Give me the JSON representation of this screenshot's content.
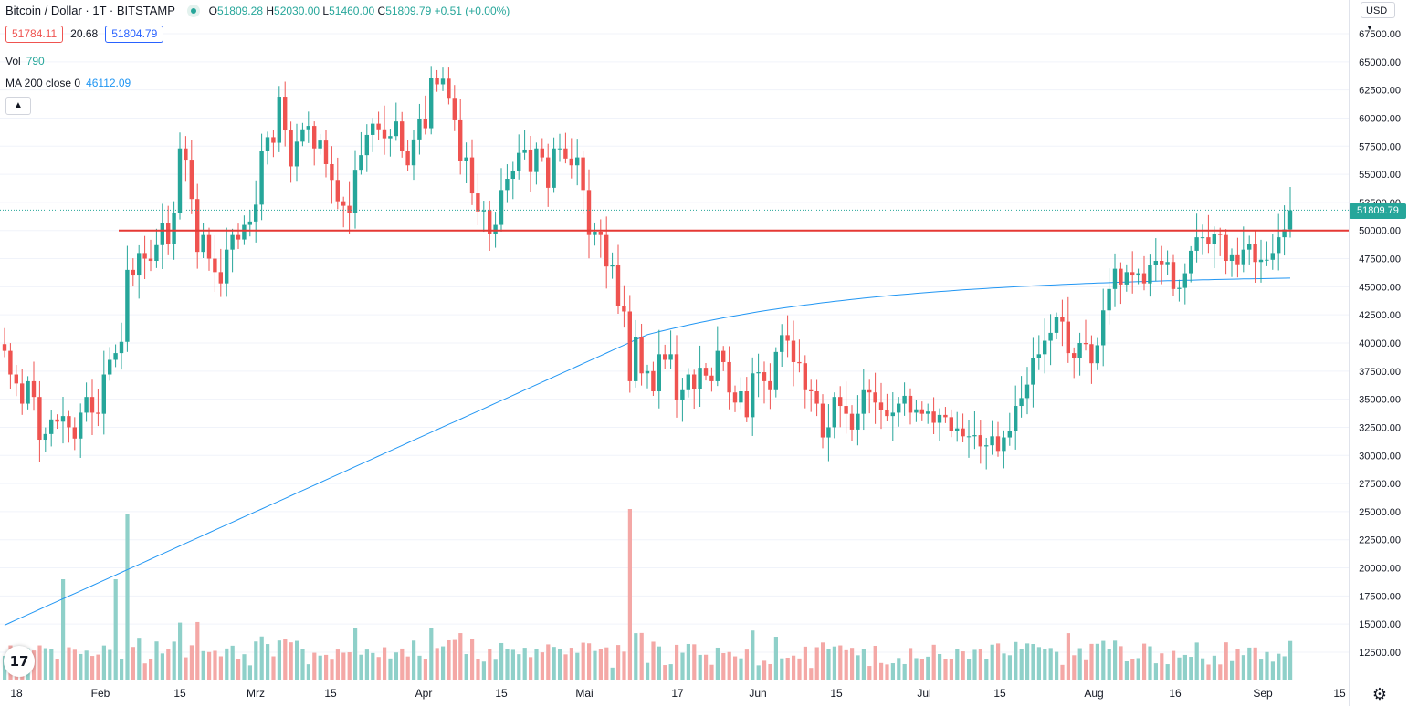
{
  "legend": {
    "title": "Bitcoin / Dollar · 1T · BITSTAMP",
    "ohlc": [
      {
        "k": "O",
        "v": "51809.28"
      },
      {
        "k": "H",
        "v": "52030.00"
      },
      {
        "k": "L",
        "v": "51460.00"
      },
      {
        "k": "C",
        "v": "51809.79 +0.51 (+0.00%)"
      }
    ],
    "bid": "51784.11",
    "spread": "20.68",
    "ask": "51804.79",
    "vol_label": "Vol",
    "vol_value": "790",
    "ma_label": "MA 200 close 0",
    "ma_value": "46112.09",
    "collapse_icon": "chevron-up-icon"
  },
  "currency_label": "USD",
  "last_price_label": "51809.79",
  "colors": {
    "up": "#26a69a",
    "down": "#ef5350",
    "up_vol": "#8fd0c9",
    "down_vol": "#f4a8a6",
    "ma": "#2196f3",
    "hline": "#e53935",
    "grid": "#f0f3fa",
    "axis_text": "#131722"
  },
  "chart_data": {
    "type": "candlestick",
    "title": "",
    "price_axis": {
      "ticks": [
        12500,
        15000,
        17500,
        20000,
        22500,
        25000,
        27500,
        30000,
        32500,
        35000,
        37500,
        40000,
        42500,
        45000,
        47500,
        50000,
        52500,
        55000,
        57500,
        60000,
        62500,
        65000,
        67500
      ],
      "tick_format": "decimal2"
    },
    "time_axis": {
      "labels": [
        "18",
        "Feb",
        "15",
        "Mrz",
        "15",
        "Apr",
        "15",
        "Mai",
        "17",
        "Jun",
        "15",
        "Jul",
        "15",
        "Aug",
        "16",
        "Sep",
        "15"
      ]
    },
    "horizontal_line": 50000,
    "last_price": 51809.79,
    "closes": [
      39300,
      37200,
      36400,
      34600,
      36600,
      35200,
      31400,
      31900,
      33200,
      33000,
      33500,
      32500,
      31500,
      33800,
      35200,
      33800,
      33700,
      37200,
      38500,
      39100,
      40100,
      46500,
      46000,
      48000,
      47500,
      47300,
      48700,
      50700,
      48800,
      51600,
      57300,
      56300,
      52800,
      48100,
      49600,
      47500,
      46300,
      45300,
      48300,
      49600,
      49200,
      50500,
      50800,
      52300,
      57100,
      58300,
      57800,
      61900,
      58900,
      55700,
      57900,
      59000,
      59300,
      57300,
      58000,
      55900,
      54500,
      52600,
      52200,
      51600,
      55400,
      56700,
      58500,
      59500,
      59000,
      58200,
      58400,
      59700,
      57100,
      55800,
      58100,
      59900,
      59100,
      63600,
      63000,
      63500,
      61800,
      59800,
      56200,
      56500,
      53300,
      51700,
      51800,
      49700,
      50500,
      53600,
      54600,
      55300,
      56900,
      57200,
      55200,
      57300,
      56500,
      53800,
      57300,
      57300,
      56400,
      55800,
      56500,
      53600,
      49600,
      49900,
      49600,
      46800,
      46900,
      43300,
      42800,
      36600,
      40500,
      37300,
      37500,
      35700,
      39000,
      38500,
      39000,
      34900,
      35800,
      37200,
      35900,
      37800,
      37100,
      36600,
      39300,
      38300,
      35600,
      34700,
      35700,
      33400,
      37300,
      37400,
      36600,
      35800,
      39200,
      40700,
      40200,
      38300,
      38200,
      35800,
      35700,
      34600,
      31600,
      32500,
      35200,
      34400,
      33700,
      32300,
      33700,
      35800,
      35600,
      34700,
      34000,
      33500,
      33800,
      34600,
      35300,
      33800,
      34100,
      33700,
      33900,
      32900,
      33600,
      33400,
      32200,
      32400,
      31700,
      31700,
      31800,
      30800,
      30900,
      31700,
      30400,
      31600,
      32200,
      34400,
      35100,
      36300,
      38700,
      39000,
      40200,
      40900,
      42300,
      41900,
      39100,
      38700,
      40000,
      39900,
      38200,
      39800,
      42900,
      44800,
      46600,
      45200,
      46300,
      46000,
      46200,
      45300,
      46900,
      47300,
      47000,
      47200,
      44800,
      44900,
      46200,
      48200,
      49400,
      49400,
      48800,
      49700,
      49600,
      47300,
      47800,
      47000,
      48300,
      48800,
      47200,
      47400,
      47400,
      48000,
      49400,
      50100,
      51800
    ]
  }
}
